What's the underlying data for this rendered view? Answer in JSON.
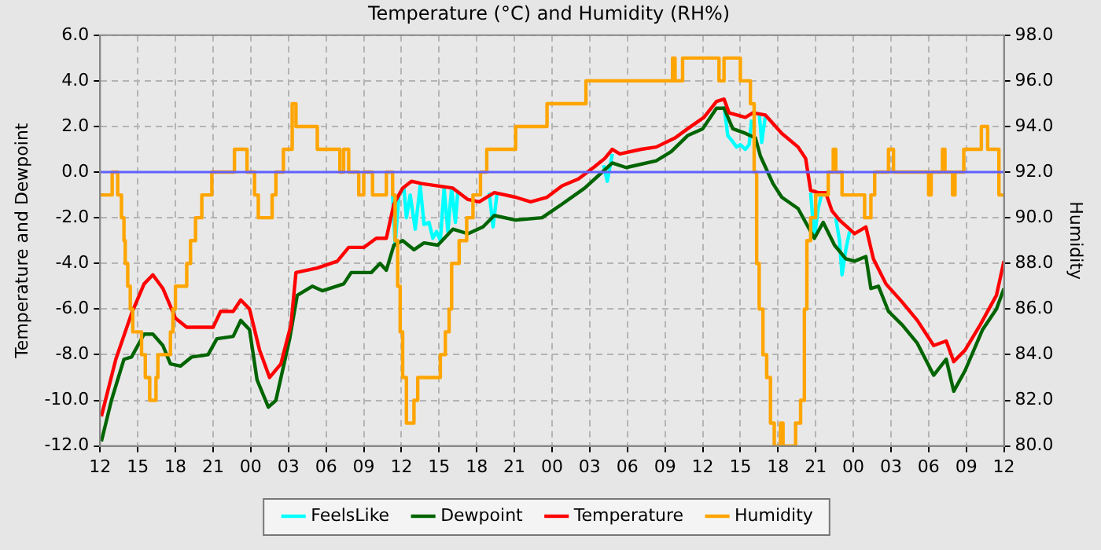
{
  "chart_data": {
    "type": "line",
    "title": "Temperature (°C) and Humidity (RH%)",
    "ylabel": "Temperature and Dewpoint",
    "y2label": "Humidity",
    "xlim": [
      12,
      84
    ],
    "xticks": [
      12,
      15,
      18,
      21,
      {
        "value": 24,
        "label": "00"
      },
      {
        "value": 27,
        "label": "03"
      },
      {
        "value": 30,
        "label": "06"
      },
      {
        "value": 33,
        "label": "09"
      },
      {
        "value": 36,
        "label": "12"
      },
      {
        "value": 39,
        "label": "15"
      },
      {
        "value": 42,
        "label": "18"
      },
      {
        "value": 45,
        "label": "21"
      },
      {
        "value": 48,
        "label": "00"
      },
      {
        "value": 51,
        "label": "03"
      },
      {
        "value": 54,
        "label": "06"
      },
      {
        "value": 57,
        "label": "09"
      },
      {
        "value": 60,
        "label": "12"
      },
      {
        "value": 63,
        "label": "15"
      },
      {
        "value": 66,
        "label": "18"
      },
      {
        "value": 69,
        "label": "21"
      },
      {
        "value": 72,
        "label": "00"
      },
      {
        "value": 75,
        "label": "03"
      },
      {
        "value": 78,
        "label": "06"
      },
      {
        "value": 81,
        "label": "09"
      },
      {
        "value": 84,
        "label": "12"
      }
    ],
    "ylim": [
      -12,
      6
    ],
    "yticks": [
      {
        "value": -12,
        "label": "-12.0"
      },
      {
        "value": -10,
        "label": "-10.0"
      },
      {
        "value": -8,
        "label": "-8.0"
      },
      {
        "value": -6,
        "label": "-6.0"
      },
      {
        "value": -4,
        "label": "-4.0"
      },
      {
        "value": -2,
        "label": "-2.0"
      },
      {
        "value": 0,
        "label": "0.0"
      },
      {
        "value": 2,
        "label": "2.0"
      },
      {
        "value": 4,
        "label": "4.0"
      },
      {
        "value": 6,
        "label": "6.0"
      }
    ],
    "y2lim": [
      80,
      98
    ],
    "y2ticks": [
      {
        "value": 80,
        "label": "80.0"
      },
      {
        "value": 82,
        "label": "82.0"
      },
      {
        "value": 84,
        "label": "84.0"
      },
      {
        "value": 86,
        "label": "86.0"
      },
      {
        "value": 88,
        "label": "88.0"
      },
      {
        "value": 90,
        "label": "90.0"
      },
      {
        "value": 92,
        "label": "92.0"
      },
      {
        "value": 94,
        "label": "94.0"
      },
      {
        "value": 96,
        "label": "96.0"
      },
      {
        "value": 98,
        "label": "98.0"
      }
    ],
    "grid": true,
    "legend": "bottom",
    "marker": "none",
    "ref_lines": [
      {
        "axis": "y",
        "value": 0,
        "color": "#6060ff"
      }
    ],
    "series": [
      {
        "name": "FeelsLike",
        "color": "#00ffff",
        "x": [
          35.3,
          35.5,
          35.8,
          36.2,
          36.4,
          36.7,
          37.1,
          37.5,
          37.8,
          38.2,
          38.5,
          38.8,
          39.1,
          39.4,
          39.7,
          40.0,
          40.3,
          40.5,
          41.0,
          43.0,
          43.3,
          43.6,
          47.0,
          52.1,
          52.4,
          52.8,
          57.0,
          61.7,
          62.0,
          62.3,
          62.7,
          63.0,
          63.4,
          63.7,
          63.9,
          64.2,
          64.5,
          64.7,
          65.0,
          67.0,
          68.6,
          68.9,
          69.2,
          69.5,
          70.0,
          70.6,
          70.9,
          71.1,
          71.4,
          71.7
        ],
        "values": [
          -1.0,
          -3.2,
          -1.0,
          -0.7,
          -2.0,
          -1.0,
          -2.5,
          -0.6,
          -2.3,
          -2.2,
          -2.9,
          -2.6,
          -3.0,
          -0.7,
          -2.6,
          -0.7,
          -2.2,
          -0.8,
          null,
          -0.9,
          -2.4,
          -1.0,
          null,
          0.3,
          -0.4,
          0.8,
          null,
          2.9,
          1.6,
          1.4,
          1.1,
          1.2,
          1.0,
          1.2,
          2.3,
          null,
          2.6,
          1.3,
          2.5,
          null,
          -0.9,
          -2.9,
          -1.6,
          -0.9,
          null,
          -2.0,
          -3.0,
          -4.5,
          -3.4,
          -2.6
        ]
      },
      {
        "name": "Dewpoint",
        "color": "#006400",
        "x": [
          12.1,
          12.9,
          13.9,
          14.5,
          15.5,
          16.2,
          17,
          17.6,
          18.4,
          19.3,
          20.6,
          21.3,
          22.6,
          23.2,
          23.9,
          24.5,
          25.4,
          26,
          27.1,
          27.7,
          28.9,
          29.7,
          31.4,
          32,
          33.6,
          34.3,
          34.8,
          35.4,
          36.1,
          37,
          37.8,
          38.9,
          40.1,
          41.3,
          42.5,
          43.4,
          45.1,
          47.2,
          48.8,
          50.6,
          51.8,
          52.8,
          53.9,
          56.3,
          57.5,
          58.8,
          60,
          61.1,
          61.7,
          62.4,
          63.4,
          64.2,
          64.6,
          65.6,
          66.3,
          67.6,
          68.9,
          69.6,
          70.5,
          71.4,
          72.1,
          73,
          73.4,
          74,
          74.8,
          75.9,
          77.1,
          78.4,
          79.4,
          80,
          80.9,
          82.3,
          83.4,
          84
        ],
        "values": [
          -11.8,
          -10.0,
          -8.2,
          -8.1,
          -7.1,
          -7.1,
          -7.6,
          -8.4,
          -8.5,
          -8.1,
          -8.0,
          -7.3,
          -7.2,
          -6.5,
          -6.9,
          -9.1,
          -10.3,
          -10.0,
          -7.3,
          -5.4,
          -5.0,
          -5.2,
          -4.9,
          -4.4,
          -4.4,
          -4.0,
          -4.3,
          -3.2,
          -3.0,
          -3.4,
          -3.1,
          -3.2,
          -2.5,
          -2.7,
          -2.4,
          -1.9,
          -2.1,
          -2.0,
          -1.4,
          -0.7,
          -0.1,
          0.4,
          0.2,
          0.5,
          0.9,
          1.6,
          1.9,
          2.8,
          2.8,
          1.9,
          1.7,
          1.5,
          0.7,
          -0.5,
          -1.1,
          -1.6,
          -2.9,
          -2.2,
          -3.2,
          -3.8,
          -3.9,
          -3.7,
          -5.1,
          -5.0,
          -6.1,
          -6.7,
          -7.5,
          -8.9,
          -8.2,
          -9.6,
          -8.7,
          -6.9,
          -6.0,
          -5.1
        ]
      },
      {
        "name": "Temperature",
        "color": "#ff0000",
        "x": [
          12.1,
          13.25,
          14.5,
          15.5,
          16.2,
          17,
          18,
          18.9,
          21,
          21.6,
          22.6,
          23.2,
          23.9,
          24.7,
          25.5,
          26.4,
          27.2,
          27.6,
          29.3,
          30.9,
          31.8,
          33,
          34,
          34.8,
          35.4,
          36.1,
          36.8,
          37.6,
          40.1,
          41.3,
          42.2,
          43.4,
          45.1,
          46.3,
          47.6,
          48.8,
          50.1,
          51.3,
          52.2,
          52.8,
          53.4,
          55.1,
          56.3,
          57.8,
          58.8,
          60.1,
          61.1,
          61.7,
          62.1,
          63.4,
          64,
          65,
          66.3,
          67.6,
          68.2,
          68.6,
          69.2,
          69.8,
          70.3,
          70.9,
          72.1,
          73,
          73.6,
          74.6,
          75.9,
          77.1,
          78.4,
          79.4,
          80,
          80.9,
          82.1,
          83.4,
          84
        ],
        "values": [
          -10.7,
          -8.2,
          -6.2,
          -4.9,
          -4.5,
          -5.1,
          -6.4,
          -6.8,
          -6.8,
          -6.1,
          -6.1,
          -5.6,
          -6.0,
          -7.8,
          -9.0,
          -8.4,
          -6.7,
          -4.4,
          -4.2,
          -3.9,
          -3.3,
          -3.3,
          -2.9,
          -2.9,
          -1.4,
          -0.7,
          -0.4,
          -0.5,
          -0.7,
          -1.2,
          -1.3,
          -0.9,
          -1.1,
          -1.3,
          -1.1,
          -0.6,
          -0.3,
          0.2,
          0.6,
          1.0,
          0.8,
          1.0,
          1.1,
          1.5,
          1.9,
          2.4,
          3.1,
          3.2,
          2.6,
          2.4,
          2.6,
          2.5,
          1.7,
          1.1,
          0.6,
          -0.8,
          -0.9,
          -0.9,
          -1.7,
          -2.1,
          -2.7,
          -2.4,
          -3.8,
          -4.9,
          -5.7,
          -6.5,
          -7.6,
          -7.4,
          -8.3,
          -7.8,
          -6.7,
          -5.4,
          -3.9
        ]
      },
      {
        "name": "Humidity",
        "type": "step",
        "axis": "y2",
        "color": "#ffa500",
        "x": [
          12,
          12.96,
          13.4,
          13.7,
          13.9,
          14.0,
          14.2,
          14.4,
          14.6,
          15.3,
          15.6,
          15.95,
          16.45,
          16.6,
          17.6,
          17.8,
          18.0,
          18.2,
          18.9,
          19.2,
          19.6,
          20.1,
          20.9,
          22.7,
          23.7,
          24.3,
          24.6,
          25.7,
          26.0,
          26.6,
          27.3,
          27.6,
          29.3,
          31.1,
          31.4,
          31.8,
          32.6,
          33.0,
          33.7,
          34.8,
          35.3,
          35.5,
          35.7,
          35.9,
          36.1,
          36.4,
          37.0,
          37.3,
          39.1,
          39.5,
          39.8,
          40.0,
          40.6,
          41.2,
          41.7,
          42.3,
          42.8,
          45.1,
          47.6,
          50.7,
          57.6,
          57.8,
          58.4,
          61.3,
          61.7,
          63.0,
          63.8,
          64.1,
          64.3,
          64.5,
          64.8,
          65.1,
          65.4,
          65.7,
          66.2,
          66.4,
          67.4,
          67.8,
          68.1,
          68.3,
          68.6,
          69.0,
          70.0,
          70.4,
          70.6,
          71.1,
          72.9,
          73.4,
          73.7,
          74.8,
          75.2,
          78.0,
          78.2,
          79.1,
          79.3,
          79.9,
          80.1,
          80.8,
          82.2,
          82.7,
          83.6,
          84
        ],
        "values": [
          91,
          92,
          91,
          90,
          89,
          88,
          87,
          86,
          85,
          84,
          83,
          82,
          83,
          84,
          85,
          86,
          87,
          87,
          88,
          89,
          90,
          91,
          92,
          93,
          92,
          91,
          90,
          91,
          92,
          93,
          95,
          94,
          93,
          92,
          93,
          92,
          91,
          92,
          91,
          92,
          91,
          89,
          87,
          85,
          83,
          81,
          82,
          83,
          84,
          85,
          86,
          88,
          89,
          90,
          91,
          92,
          93,
          94,
          95,
          96,
          97,
          96,
          97,
          96,
          97,
          96,
          95,
          92,
          88,
          86,
          84,
          83,
          81,
          80,
          81,
          80,
          81,
          82,
          86,
          89,
          90,
          91,
          92,
          93,
          92,
          91,
          90,
          91,
          92,
          93,
          92,
          91,
          92,
          93,
          92,
          91,
          92,
          93,
          94,
          93,
          91,
          91
        ]
      }
    ]
  }
}
